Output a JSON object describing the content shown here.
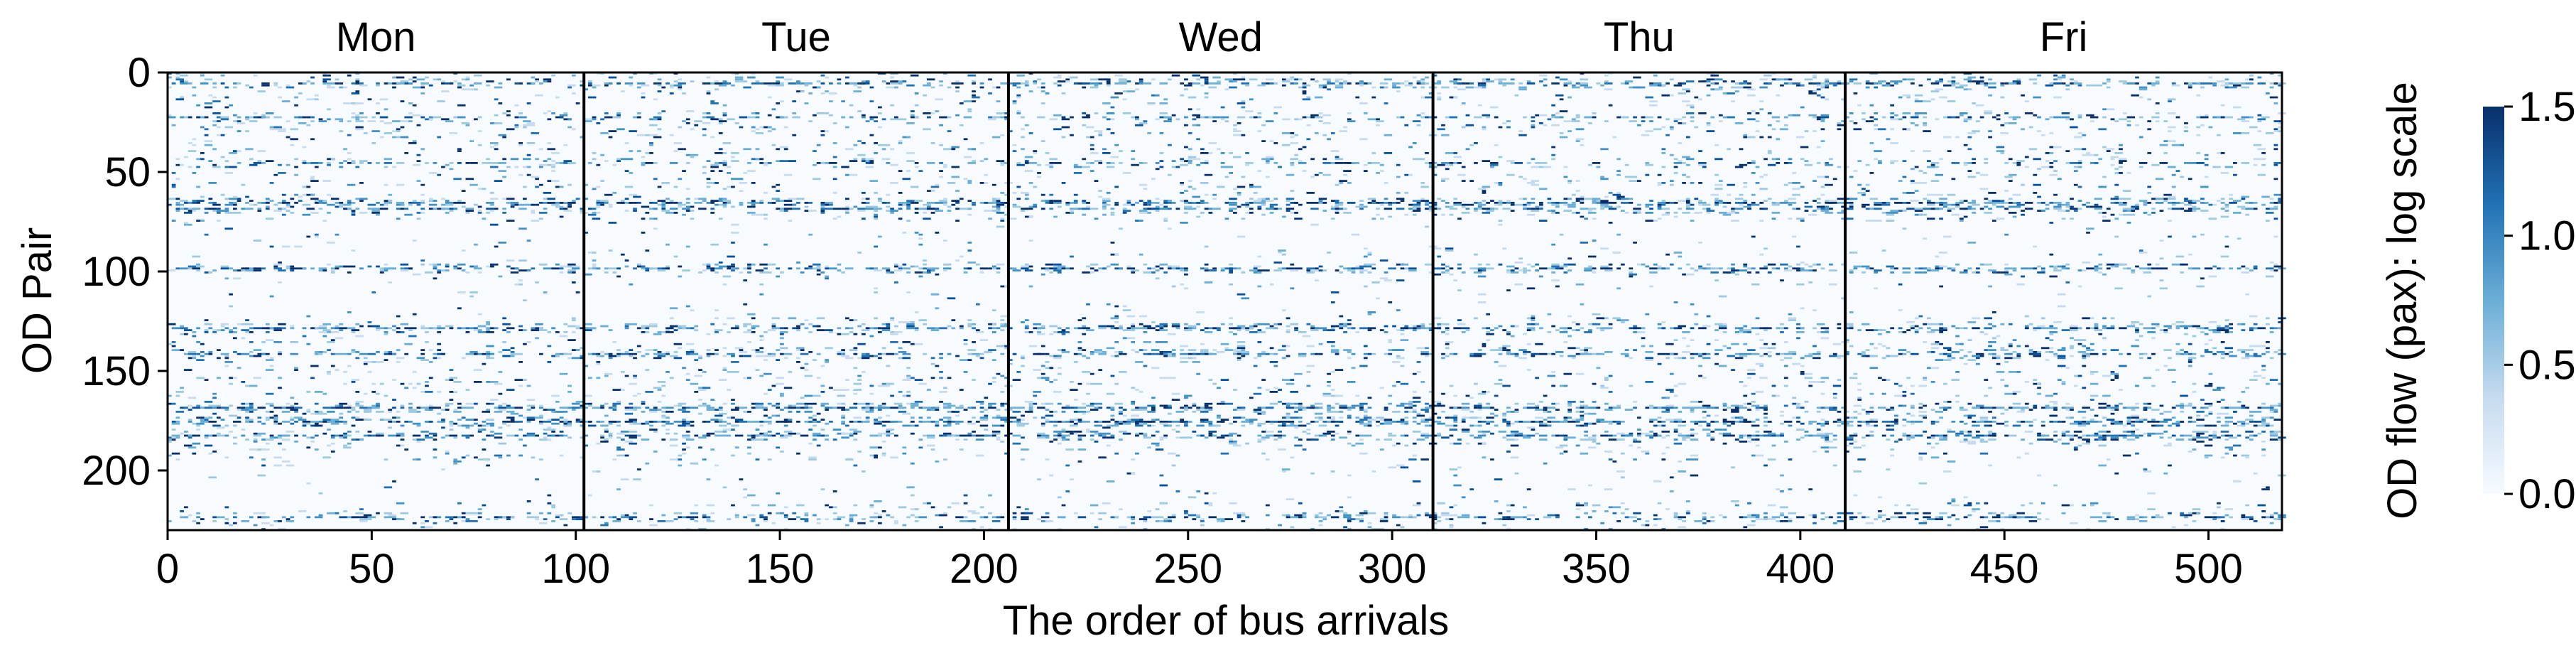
{
  "chart_data": {
    "type": "heatmap",
    "xlabel": "The order of bus arrivals",
    "ylabel": "OD Pair",
    "x_range": [
      0,
      518
    ],
    "y_range": [
      0,
      230
    ],
    "y_inverted": true,
    "xticks": [
      0,
      50,
      100,
      150,
      200,
      250,
      300,
      350,
      400,
      450,
      500
    ],
    "yticks": [
      0,
      50,
      100,
      150,
      200
    ],
    "colormap": "Blues",
    "colorbar": {
      "label": "OD flow (pax): log scale",
      "range": [
        0.0,
        1.5
      ],
      "ticks": [
        "0.0",
        "0.5",
        "1.0",
        "1.5"
      ]
    },
    "day_segments": [
      {
        "name": "Mon",
        "start": 0,
        "end": 102
      },
      {
        "name": "Tue",
        "start": 102,
        "end": 206
      },
      {
        "name": "Wed",
        "start": 206,
        "end": 310
      },
      {
        "name": "Thu",
        "start": 310,
        "end": 411
      },
      {
        "name": "Fri",
        "start": 411,
        "end": 518
      }
    ],
    "dense_rows": [
      {
        "row": 5,
        "intensity": 0.75
      },
      {
        "row": 22,
        "intensity": 0.55
      },
      {
        "row": 45,
        "intensity": 0.5
      },
      {
        "row": 65,
        "intensity": 0.9
      },
      {
        "row": 68,
        "intensity": 0.7
      },
      {
        "row": 98,
        "intensity": 0.75
      },
      {
        "row": 128,
        "intensity": 0.85
      },
      {
        "row": 141,
        "intensity": 0.75
      },
      {
        "row": 168,
        "intensity": 0.9
      },
      {
        "row": 175,
        "intensity": 0.95
      },
      {
        "row": 182,
        "intensity": 0.85
      },
      {
        "row": 223,
        "intensity": 0.7
      }
    ],
    "colors": {
      "low": "#f7fbff",
      "mid": "#6baed6",
      "high": "#08306b",
      "divider": "#000000"
    }
  }
}
